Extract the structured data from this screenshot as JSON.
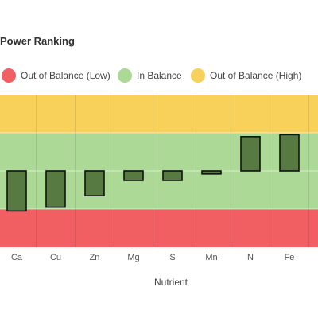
{
  "chart_data": {
    "type": "bar",
    "title": "Power Ranking",
    "xlabel": "Nutrient",
    "ylabel": "",
    "categories": [
      "Ca",
      "Cu",
      "Zn",
      "Mg",
      "S",
      "Mn",
      "N",
      "Fe"
    ],
    "values": [
      -1.05,
      -0.95,
      -0.65,
      -0.25,
      -0.25,
      -0.08,
      0.9,
      0.95
    ],
    "ylim": [
      -2,
      2
    ],
    "bands": [
      {
        "name": "Out of Balance (Low)",
        "from": -2,
        "to": -1,
        "color": "#f25f62"
      },
      {
        "name": "In Balance",
        "from": -1,
        "to": 1,
        "color": "#acd995"
      },
      {
        "name": "Out of Balance (High)",
        "from": 1,
        "to": 2,
        "color": "#f8d15b"
      }
    ],
    "grid": true,
    "legend_position": "top",
    "bar_color": "#577a42",
    "bar_border_color": "#111111"
  },
  "legend": [
    {
      "label": "Out of Balance (Low)",
      "color": "#f25f62"
    },
    {
      "label": "In Balance",
      "color": "#acd995"
    },
    {
      "label": "Out of Balance (High)",
      "color": "#f8d15b"
    }
  ]
}
